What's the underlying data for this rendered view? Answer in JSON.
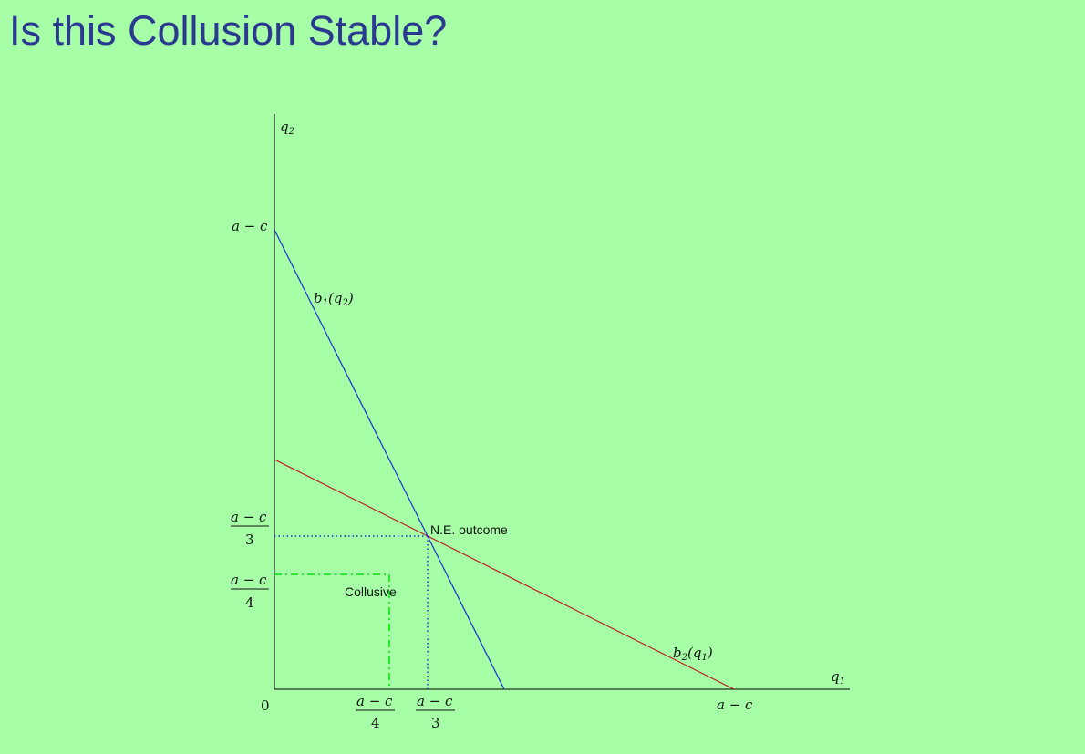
{
  "title": "Is this Collusion Stable?",
  "axes": {
    "y_label": "q",
    "y_label_sub": "2",
    "x_label": "q",
    "x_label_sub": "1",
    "origin": "0"
  },
  "ticks": {
    "y_top": "a − c",
    "y_third": {
      "num": "a − c",
      "den": "3"
    },
    "y_quarter": {
      "num": "a − c",
      "den": "4"
    },
    "x_quarter": {
      "num": "a − c",
      "den": "4"
    },
    "x_third": {
      "num": "a − c",
      "den": "3"
    },
    "x_right": "a − c"
  },
  "curves": {
    "b1": {
      "name": "b",
      "sub": "1",
      "arg": "q",
      "arg_sub": "2",
      "color": "#1a2fd0"
    },
    "b2": {
      "name": "b",
      "sub": "2",
      "arg": "q",
      "arg_sub": "1",
      "color": "#c0181c"
    }
  },
  "annotations": {
    "ne": "N.E. outcome",
    "collusive": "Collusive"
  },
  "colors": {
    "background": "#a6ffa6",
    "title": "#2b3990",
    "ne_guides": "#1a2fd0",
    "collusive_guides": "#00e000"
  }
}
